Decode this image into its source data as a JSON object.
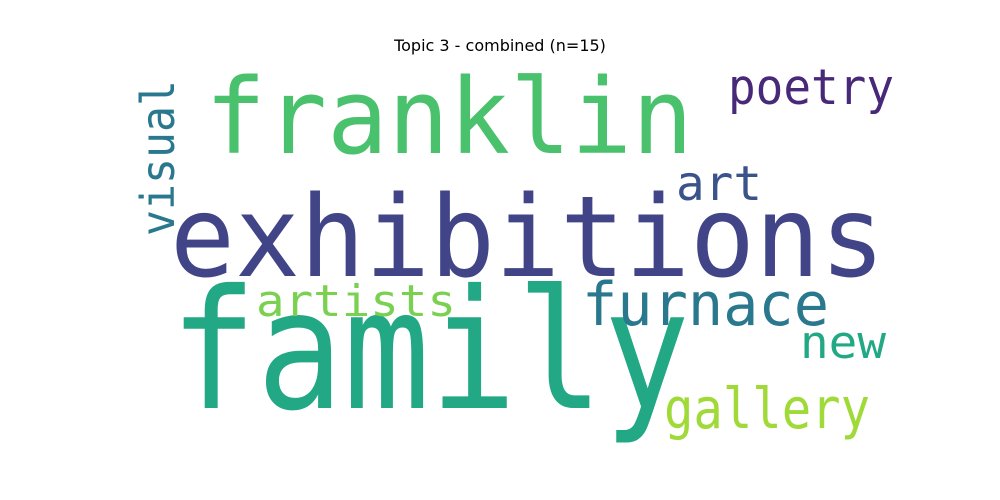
{
  "title": "Topic 3 - combined (n=15)",
  "words": [
    {
      "text": "family",
      "color": "#22a884"
    },
    {
      "text": "exhibitions",
      "color": "#414487"
    },
    {
      "text": "franklin",
      "color": "#4ac16d"
    },
    {
      "text": "furnace",
      "color": "#2a788e"
    },
    {
      "text": "artists",
      "color": "#7ad151"
    },
    {
      "text": "gallery",
      "color": "#a0da39"
    },
    {
      "text": "poetry",
      "color": "#482878"
    },
    {
      "text": "art",
      "color": "#3b528b"
    },
    {
      "text": "new",
      "color": "#22a884"
    },
    {
      "text": "visual",
      "color": "#2a788e"
    }
  ]
}
